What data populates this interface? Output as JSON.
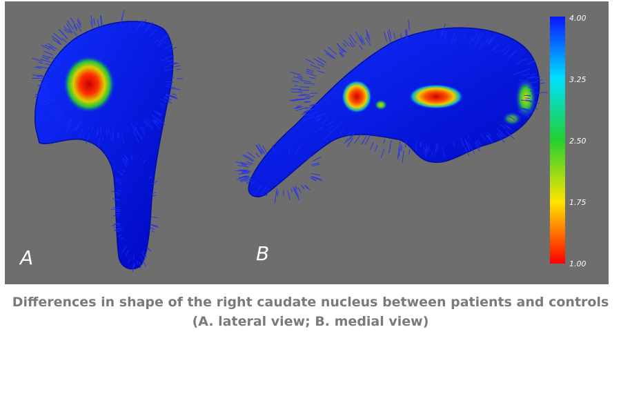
{
  "figure": {
    "panel_labels": {
      "a": "A",
      "b": "B"
    },
    "colorbar": {
      "ticks": [
        "4.00",
        "3.25",
        "2.50",
        "1.75",
        "1.00"
      ],
      "colors": [
        "#0a14ff",
        "#00e0ff",
        "#22d030",
        "#ffe400",
        "#ff0000"
      ],
      "min": 1.0,
      "max": 4.0
    },
    "background_color": "#6e6e6e"
  },
  "caption": {
    "line1": "Differences in shape of the right caudate nucleus between patients and controls",
    "line2": "(A. lateral view; B. medial view)"
  }
}
